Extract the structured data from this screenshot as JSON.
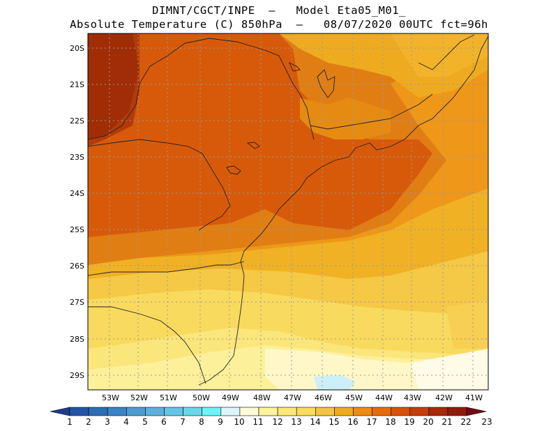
{
  "header": {
    "line1": "DIMNT/CGCT/INPE  –   Model Eta05_M01_",
    "line2": "Absolute Temperature (C) 850hPa  –   08/07/2020 00UTC fct=96h"
  },
  "lat_labels": [
    "20S",
    "21S",
    "22S",
    "23S",
    "24S",
    "25S",
    "26S",
    "27S",
    "28S",
    "29S"
  ],
  "lon_labels": [
    "53W",
    "52W",
    "51W",
    "50W",
    "49W",
    "48W",
    "47W",
    "46W",
    "45W",
    "44W",
    "43W",
    "42W",
    "41W"
  ],
  "colorbar": {
    "labels": [
      "1",
      "2",
      "3",
      "4",
      "5",
      "6",
      "7",
      "8",
      "9",
      "10",
      "11",
      "12",
      "13",
      "14",
      "15",
      "16",
      "17",
      "18",
      "19",
      "20",
      "21",
      "22",
      "23"
    ],
    "colors": [
      "#1e3c8c",
      "#2255a5",
      "#2c6db5",
      "#3a84c4",
      "#4d9bd1",
      "#5cb0dc",
      "#66c4e4",
      "#6bd6ea",
      "#6ef3fa",
      "#ddf6fb",
      "#fffbd8",
      "#fef39e",
      "#fde87a",
      "#f9db5e",
      "#f2c443",
      "#efab1f",
      "#eb8d12",
      "#e56c0c",
      "#d95006",
      "#c43e07",
      "#a52a05",
      "#8e1d0c",
      "#760a12"
    ]
  },
  "legend_values": {
    "min": 1,
    "max": 23,
    "unit": "C"
  }
}
